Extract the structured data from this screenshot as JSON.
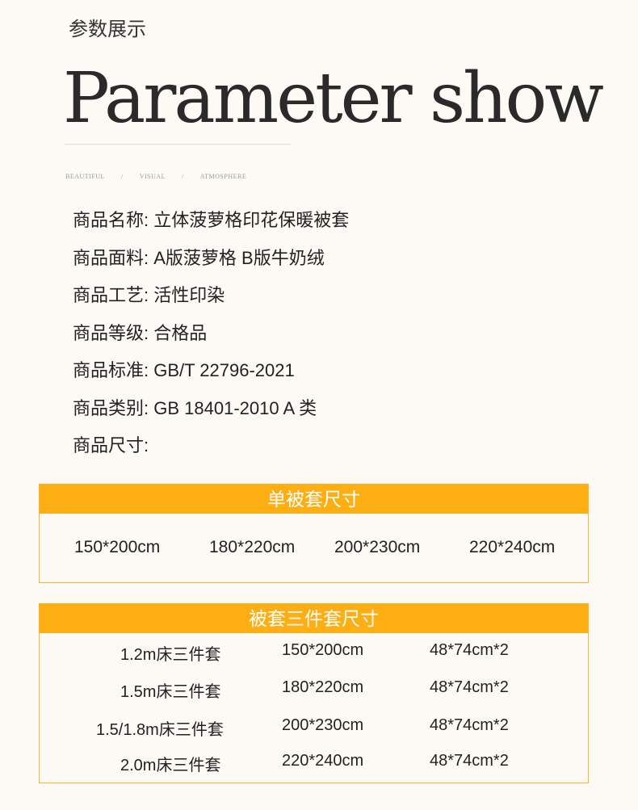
{
  "header": {
    "cn_title": "参数展示",
    "en_title": "Parameter show",
    "tags": [
      "BEAUTIFUL",
      "/",
      "VISUAL",
      "/",
      "ATMOSPHERE"
    ]
  },
  "params": [
    {
      "label": "商品名称:",
      "value": "立体菠萝格印花保暖被套"
    },
    {
      "label": "商品面料:",
      "value": "A版菠萝格  B版牛奶绒"
    },
    {
      "label": "商品工艺:",
      "value": "活性印染"
    },
    {
      "label": "商品等级:",
      "value": "合格品"
    },
    {
      "label": "商品标准:",
      "value": "GB/T 22796-2021"
    },
    {
      "label": "商品类别:",
      "value": "GB 18401-2010 A 类"
    },
    {
      "label": "商品尺寸:",
      "value": ""
    }
  ],
  "single": {
    "title": "单被套尺寸",
    "sizes": [
      "150*200cm",
      "180*220cm",
      "200*230cm",
      "220*240cm"
    ]
  },
  "set": {
    "title": "被套三件套尺寸",
    "rows": [
      {
        "bed": "1.2m床三件套",
        "cover": "150*200cm",
        "pillow": "48*74cm*2"
      },
      {
        "bed": "1.5m床三件套",
        "cover": "180*220cm",
        "pillow": "48*74cm*2"
      },
      {
        "bed": "1.5/1.8m床三件套",
        "cover": "200*230cm",
        "pillow": "48*74cm*2"
      },
      {
        "bed": "2.0m床三件套",
        "cover": "220*240cm",
        "pillow": "48*74cm*2"
      }
    ]
  },
  "colors": {
    "accent": "#fdae13",
    "background": "#fdfaf5"
  }
}
